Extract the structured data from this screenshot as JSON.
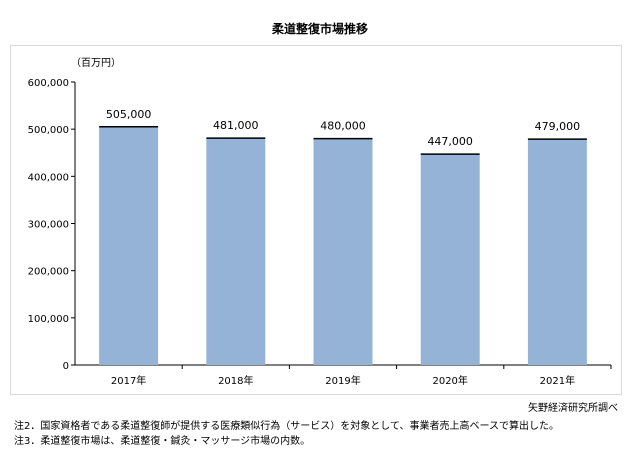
{
  "chart_data": {
    "type": "bar",
    "title": "柔道整復市場推移",
    "unit_label": "（百万円）",
    "categories": [
      "2017年",
      "2018年",
      "2019年",
      "2020年",
      "2021年"
    ],
    "values": [
      505000,
      481000,
      480000,
      447000,
      479000
    ],
    "value_labels": [
      "505,000",
      "481,000",
      "480,000",
      "447,000",
      "479,000"
    ],
    "ylim": [
      0,
      600000
    ],
    "yticks": [
      0,
      100000,
      200000,
      300000,
      400000,
      500000,
      600000
    ],
    "ytick_labels": [
      "0",
      "100,000",
      "200,000",
      "300,000",
      "400,000",
      "500,000",
      "600,000"
    ],
    "bar_color": "#95b3d7",
    "bar_top_color": "#000000",
    "grid": false
  },
  "source": "矢野経済研究所調べ",
  "notes": [
    "注2．国家資格者である柔道整復師が提供する医療類似行為（サービス）を対象として、事業者売上高ベースで算出した。",
    "注3．柔道整復市場は、柔道整復・鍼灸・マッサージ市場の内数。"
  ]
}
